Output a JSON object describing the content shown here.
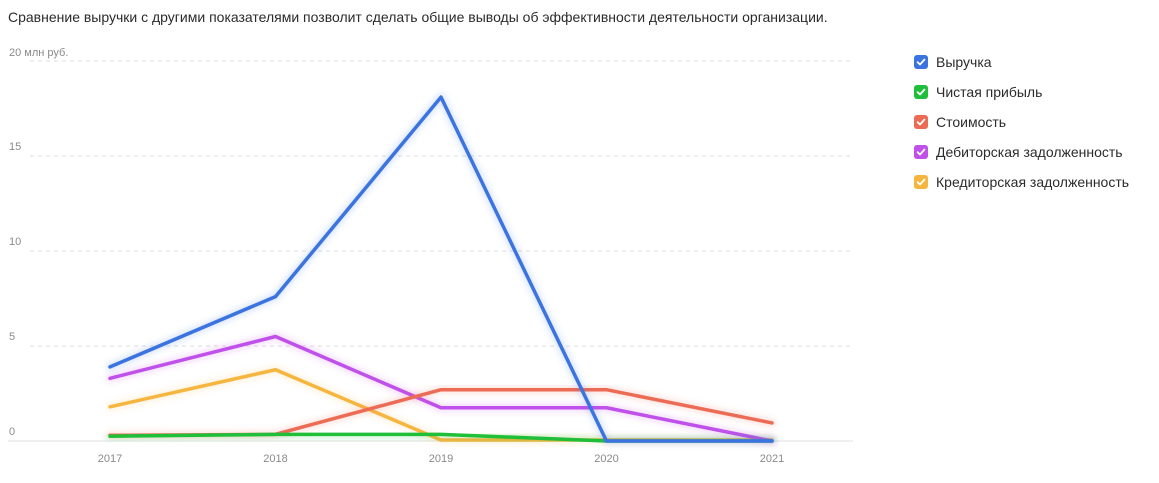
{
  "description": "Сравнение выручки с другими показателями позволит сделать общие выводы об эффективности деятельности организации.",
  "chart_data": {
    "type": "line",
    "categories": [
      "2017",
      "2018",
      "2019",
      "2020",
      "2021"
    ],
    "y_unit_label": "20 млн руб.",
    "y_ticks": [
      "0",
      "5",
      "10",
      "15"
    ],
    "ylim": [
      0,
      20
    ],
    "grid": "horizontal-dashed",
    "legend_position": "right",
    "series": [
      {
        "name": "Выручка",
        "color": "#3b73e0",
        "values": [
          3.9,
          7.6,
          18.1,
          0.0,
          0.0
        ]
      },
      {
        "name": "Чистая прибыль",
        "color": "#1fbf3a",
        "values": [
          0.25,
          0.35,
          0.35,
          0.0,
          0.0
        ]
      },
      {
        "name": "Стоимость",
        "color": "#ec6b55",
        "values": [
          0.3,
          0.35,
          2.7,
          2.7,
          0.95
        ]
      },
      {
        "name": "Дебиторская задолженность",
        "color": "#c050ea",
        "values": [
          3.3,
          5.5,
          1.75,
          1.75,
          0.0
        ]
      },
      {
        "name": "Кредиторская задолженность",
        "color": "#f5b640",
        "values": [
          1.8,
          3.75,
          0.05,
          0.05,
          0.05
        ]
      }
    ]
  }
}
